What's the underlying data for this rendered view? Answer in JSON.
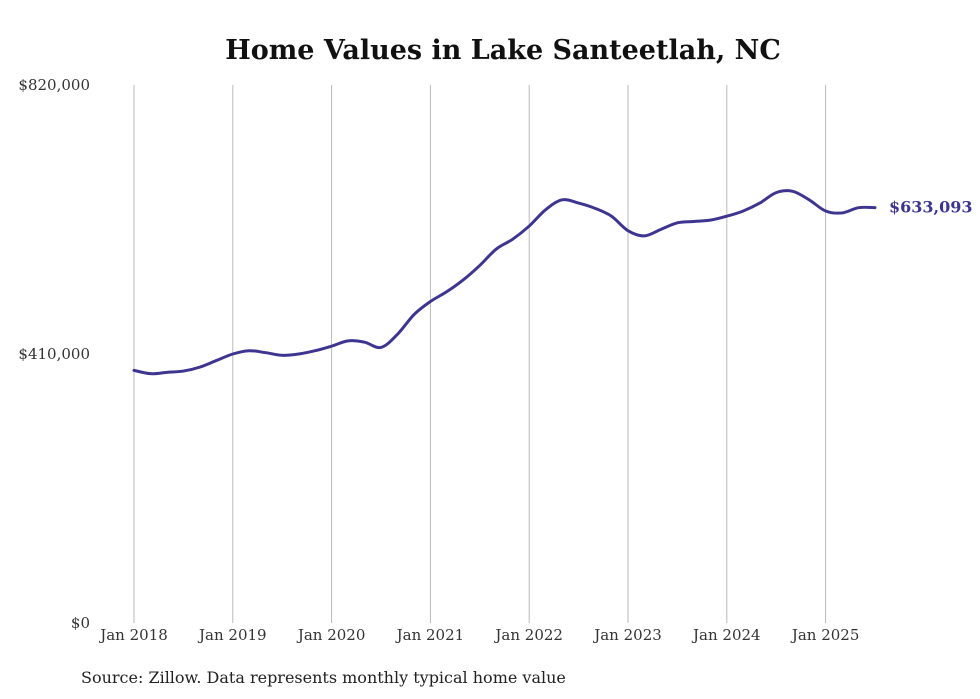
{
  "chart_data": {
    "type": "line",
    "title": "Home Values in Lake Santeetlah, NC",
    "xlabel": "",
    "ylabel": "",
    "ylim": [
      0,
      820000
    ],
    "y_ticks": [
      {
        "value": 0,
        "label": "$0"
      },
      {
        "value": 410000,
        "label": "$410,000"
      },
      {
        "value": 820000,
        "label": "$820,000"
      }
    ],
    "xlim": [
      "2018-01",
      "2025-07"
    ],
    "x_ticks": [
      {
        "date": "2018-01",
        "label": "Jan 2018"
      },
      {
        "date": "2019-01",
        "label": "Jan 2019"
      },
      {
        "date": "2020-01",
        "label": "Jan 2020"
      },
      {
        "date": "2021-01",
        "label": "Jan 2021"
      },
      {
        "date": "2022-01",
        "label": "Jan 2022"
      },
      {
        "date": "2023-01",
        "label": "Jan 2023"
      },
      {
        "date": "2024-01",
        "label": "Jan 2024"
      },
      {
        "date": "2025-01",
        "label": "Jan 2025"
      }
    ],
    "grid": "vertical",
    "series": [
      {
        "color": "#3d3590",
        "x": [
          "2018-01",
          "2018-03",
          "2018-05",
          "2018-07",
          "2018-09",
          "2018-11",
          "2019-01",
          "2019-03",
          "2019-05",
          "2019-07",
          "2019-09",
          "2019-11",
          "2020-01",
          "2020-03",
          "2020-05",
          "2020-07",
          "2020-09",
          "2020-11",
          "2021-01",
          "2021-03",
          "2021-05",
          "2021-07",
          "2021-09",
          "2021-11",
          "2022-01",
          "2022-03",
          "2022-05",
          "2022-07",
          "2022-09",
          "2022-11",
          "2023-01",
          "2023-03",
          "2023-05",
          "2023-07",
          "2023-09",
          "2023-11",
          "2024-01",
          "2024-03",
          "2024-05",
          "2024-07",
          "2024-09",
          "2024-11",
          "2025-01",
          "2025-03",
          "2025-05",
          "2025-07"
        ],
        "y": [
          385000,
          380000,
          382000,
          384000,
          390000,
          400000,
          410000,
          415000,
          412000,
          408000,
          410000,
          415000,
          422000,
          430000,
          428000,
          420000,
          440000,
          470000,
          490000,
          505000,
          523000,
          545000,
          570000,
          585000,
          605000,
          630000,
          645000,
          640000,
          632000,
          620000,
          598000,
          590000,
          600000,
          610000,
          612000,
          614000,
          620000,
          628000,
          640000,
          656000,
          658000,
          645000,
          628000,
          625000,
          633000,
          633093
        ]
      }
    ],
    "end_label": "$633,093",
    "source_note": "Source: Zillow. Data represents monthly typical home value"
  }
}
